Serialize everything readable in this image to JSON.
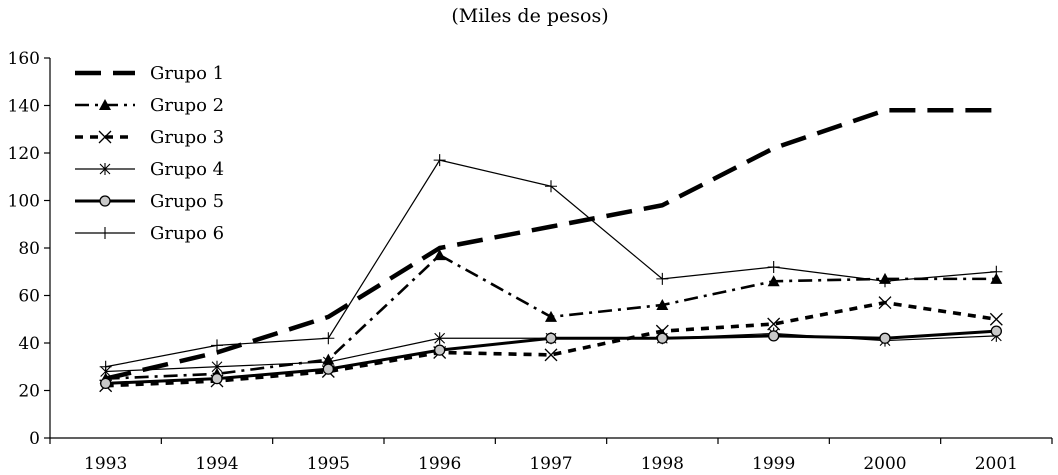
{
  "chart_data": {
    "type": "line",
    "title": "(Miles de pesos)",
    "xlabel": "",
    "ylabel": "",
    "ylim": [
      0,
      160
    ],
    "yticks": [
      0,
      20,
      40,
      60,
      80,
      100,
      120,
      140,
      160
    ],
    "categories": [
      "1993",
      "1994",
      "1995",
      "1996",
      "1997",
      "1998",
      "1999",
      "2000",
      "2001"
    ],
    "legend_position": "top-left",
    "grid": false,
    "series": [
      {
        "name": "Grupo 1",
        "style": "long-dash",
        "marker": "none",
        "color": "#000000",
        "values": [
          25,
          36,
          51,
          80,
          89,
          98,
          122,
          138,
          138
        ]
      },
      {
        "name": "Grupo 2",
        "style": "dash-dot",
        "marker": "triangle",
        "color": "#000000",
        "values": [
          25,
          27,
          33,
          77,
          51,
          56,
          66,
          67,
          67
        ]
      },
      {
        "name": "Grupo 3",
        "style": "short-dash",
        "marker": "x",
        "color": "#000000",
        "values": [
          22,
          24,
          28,
          36,
          35,
          45,
          48,
          57,
          50
        ]
      },
      {
        "name": "Grupo 4",
        "style": "thin-solid",
        "marker": "asterisk",
        "color": "#000000",
        "values": [
          28,
          30,
          32,
          42,
          42,
          42,
          44,
          41,
          43
        ]
      },
      {
        "name": "Grupo 5",
        "style": "thick-solid",
        "marker": "circle",
        "color": "#000000",
        "values": [
          23,
          25,
          29,
          37,
          42,
          42,
          43,
          42,
          45
        ]
      },
      {
        "name": "Grupo 6",
        "style": "thin-solid",
        "marker": "plus",
        "color": "#000000",
        "values": [
          30,
          39,
          42,
          117,
          106,
          67,
          72,
          66,
          70
        ]
      }
    ]
  }
}
